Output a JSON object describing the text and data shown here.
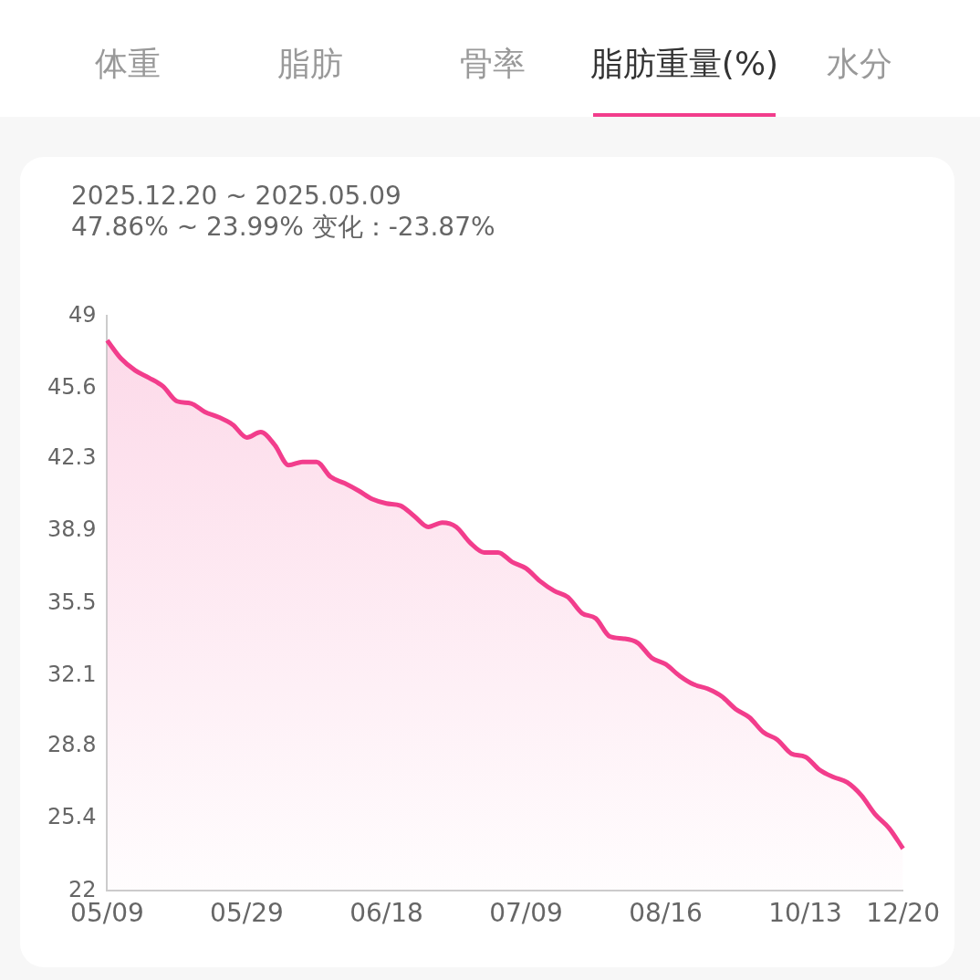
{
  "chart_data": {
    "type": "area",
    "title": "脂肪重量(%)",
    "subtitle": "2025.12.20 ~ 2025.05.09\n47.86% ~ 23.99%  变化：-23.87%",
    "annotations": [
      "体重",
      "脂肪",
      "骨率",
      "水分"
    ],
    "categories": [
      "05/09",
      null,
      null,
      null,
      null,
      null,
      null,
      null,
      null,
      null,
      "05/29",
      null,
      null,
      null,
      null,
      null,
      null,
      null,
      null,
      null,
      "06/18",
      null,
      null,
      null,
      null,
      null,
      null,
      null,
      null,
      null,
      "07/09",
      null,
      null,
      null,
      null,
      null,
      null,
      null,
      null,
      null,
      "08/16",
      null,
      null,
      null,
      null,
      null,
      null,
      null,
      null,
      null,
      "10/13",
      null,
      null,
      null,
      null,
      null,
      null,
      "12/20"
    ],
    "values": [
      47.86,
      47.0,
      46.45,
      46.1,
      45.7,
      45.0,
      44.9,
      44.5,
      44.25,
      43.9,
      43.3,
      43.55,
      42.95,
      42.0,
      42.15,
      42.15,
      41.45,
      41.15,
      40.8,
      40.4,
      40.2,
      40.1,
      39.6,
      39.1,
      39.3,
      39.1,
      38.35,
      37.9,
      37.9,
      37.45,
      37.15,
      36.55,
      36.1,
      35.8,
      35.05,
      34.8,
      33.95,
      33.85,
      33.65,
      32.95,
      32.65,
      32.1,
      31.7,
      31.5,
      31.15,
      30.55,
      30.15,
      29.45,
      29.1,
      28.45,
      28.3,
      27.7,
      27.35,
      27.1,
      26.5,
      25.6,
      24.95,
      23.99
    ],
    "color": "#f23d8c",
    "ylim": [
      22,
      49
    ],
    "yticks": [
      22,
      25.4,
      28.8,
      32.1,
      35.5,
      38.9,
      42.3,
      45.6,
      49
    ],
    "grid": false,
    "legend": false,
    "marker": "none"
  }
}
